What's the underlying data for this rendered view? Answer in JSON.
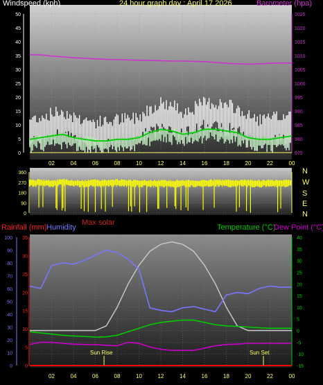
{
  "header": {
    "title": "24 hour graph day : April 17 2026",
    "windspeed_label": "Windspeed (kph)",
    "barometer_label": "Barometer (hpa)"
  },
  "direction_panel": {
    "compass": [
      "N",
      "W",
      "S",
      "E",
      "N"
    ],
    "max_solar_label": "Max solar"
  },
  "bottom_panel": {
    "rainfall_label": "Rainfall (mm)",
    "humidity_label": "Humidity",
    "temperature_label": "Temperature (°C)",
    "dewpoint_label": "Dew Point (°C)",
    "sunrise_label": "Sun Rise",
    "sunset_label": "Sun Set"
  },
  "colors": {
    "wind_gust": "#ffffff",
    "wind_avg": "#ccffcc",
    "wind_avg_line": "#00cc00",
    "barometer": "#cc33cc",
    "direction": "#ffff00",
    "humidity": "#7777ff",
    "temperature": "#00cc00",
    "dewpoint": "#cc00cc",
    "solar": "#cccccc",
    "rain": "#ff0000",
    "title": "#ffff66"
  },
  "chart_data": [
    {
      "type": "line",
      "x_ticks": [
        "02",
        "04",
        "06",
        "08",
        "10",
        "12",
        "14",
        "16",
        "18",
        "20",
        "22",
        "00"
      ],
      "y_left_ticks": [
        "0",
        "5",
        "10",
        "15",
        "20",
        "25",
        "30",
        "35",
        "40",
        "45",
        "50"
      ],
      "y_right_ticks": [
        "975",
        "980",
        "985",
        "990",
        "995",
        "1000",
        "1005",
        "1010",
        "1015",
        "1020",
        "1025"
      ],
      "ylim_left": [
        0,
        50
      ],
      "ylim_right": [
        975,
        1025
      ],
      "x_hours": [
        0,
        1,
        2,
        3,
        4,
        5,
        6,
        7,
        8,
        9,
        10,
        11,
        12,
        13,
        14,
        15,
        16,
        17,
        18,
        19,
        20,
        21,
        22,
        23,
        24
      ],
      "series": [
        {
          "name": "Windspeed (kph)",
          "values": [
            8,
            9,
            10,
            11,
            9,
            8,
            7,
            7,
            8,
            8,
            9,
            12,
            14,
            13,
            11,
            12,
            14,
            14,
            13,
            12,
            9,
            8,
            8,
            9,
            10
          ]
        },
        {
          "name": "Barometer (hpa)",
          "values": [
            1010.3,
            1010.2,
            1009.8,
            1009.5,
            1009.2,
            1009.0,
            1008.8,
            1008.6,
            1008.5,
            1008.4,
            1008.3,
            1008.2,
            1008.1,
            1008.0,
            1008.0,
            1007.9,
            1007.8,
            1007.5,
            1007.2,
            1007.0,
            1006.9,
            1007.0,
            1007.2,
            1007.3,
            1007.3
          ]
        }
      ]
    },
    {
      "type": "bar",
      "y_ticks": [
        "0",
        "90",
        "180",
        "270",
        "360"
      ],
      "ylim": [
        0,
        360
      ],
      "x_hours": [
        0,
        1,
        2,
        3,
        4,
        5,
        6,
        7,
        8,
        9,
        10,
        11,
        12,
        13,
        14,
        15,
        16,
        17,
        18,
        19,
        20,
        21,
        22,
        23,
        24
      ],
      "series": [
        {
          "name": "Wind direction",
          "values": [
            270,
            275,
            265,
            280,
            270,
            268,
            272,
            270,
            275,
            272,
            270,
            268,
            270,
            265,
            272,
            270,
            268,
            275,
            270,
            272,
            270,
            268,
            272,
            270,
            270
          ]
        }
      ]
    },
    {
      "type": "line",
      "y_rain_ticks": [
        "0",
        "5",
        "10",
        "15",
        "20",
        "25",
        "30",
        "35"
      ],
      "y_humidity_ticks": [
        "0",
        "10",
        "20",
        "30",
        "40",
        "50",
        "60",
        "70",
        "80",
        "90",
        "100"
      ],
      "y_temp_ticks": [
        "-15",
        "-10",
        "-5",
        "0",
        "5",
        "10",
        "15",
        "20",
        "25",
        "30",
        "35",
        "40"
      ],
      "ylim_rain": [
        0,
        35
      ],
      "ylim_humidity": [
        0,
        100
      ],
      "ylim_temp": [
        -15,
        40
      ],
      "x_hours": [
        0,
        1,
        2,
        3,
        4,
        5,
        6,
        7,
        8,
        9,
        10,
        11,
        12,
        13,
        14,
        15,
        16,
        17,
        18,
        19,
        20,
        21,
        22,
        23,
        24
      ],
      "series": [
        {
          "name": "Humidity",
          "values": [
            62,
            60,
            78,
            80,
            79,
            82,
            86,
            90,
            88,
            83,
            75,
            45,
            43,
            42,
            45,
            46,
            44,
            42,
            55,
            57,
            56,
            60,
            62,
            61,
            61
          ]
        },
        {
          "name": "Temperature (°C)",
          "values": [
            -0.5,
            -1,
            -1.5,
            -2,
            -2.3,
            -2.5,
            -2.8,
            -2.7,
            -2,
            -0.5,
            1,
            2.5,
            3.5,
            4,
            4.5,
            4.5,
            3.5,
            2.5,
            2,
            1.8,
            1.5,
            1.2,
            1,
            1,
            1
          ]
        },
        {
          "name": "Dew Point (°C)",
          "values": [
            -6,
            -5,
            -5,
            -5.5,
            -5.8,
            -6,
            -6,
            -6.3,
            -6.5,
            -5,
            -5.5,
            -7,
            -8,
            -8.5,
            -8.5,
            -8.5,
            -7.5,
            -6.5,
            -6,
            -5.8,
            -5.5,
            -5.5,
            -5.5,
            -5.5,
            -5.5
          ]
        },
        {
          "name": "Max solar",
          "values": [
            0,
            0,
            0,
            0,
            0,
            0,
            0,
            2,
            10,
            20,
            28,
            34,
            37,
            38,
            37,
            34,
            28,
            20,
            10,
            2,
            0,
            0,
            0,
            0,
            0
          ]
        },
        {
          "name": "Rainfall (mm)",
          "values": [
            0,
            0,
            0,
            0,
            0,
            0,
            0,
            0,
            0,
            0,
            0,
            0,
            0,
            0,
            0,
            0,
            0,
            0,
            0,
            0,
            0,
            0,
            0,
            0,
            0
          ]
        }
      ],
      "annotations": {
        "sunrise_hour": 6.8,
        "sunset_hour": 21.4
      }
    }
  ]
}
